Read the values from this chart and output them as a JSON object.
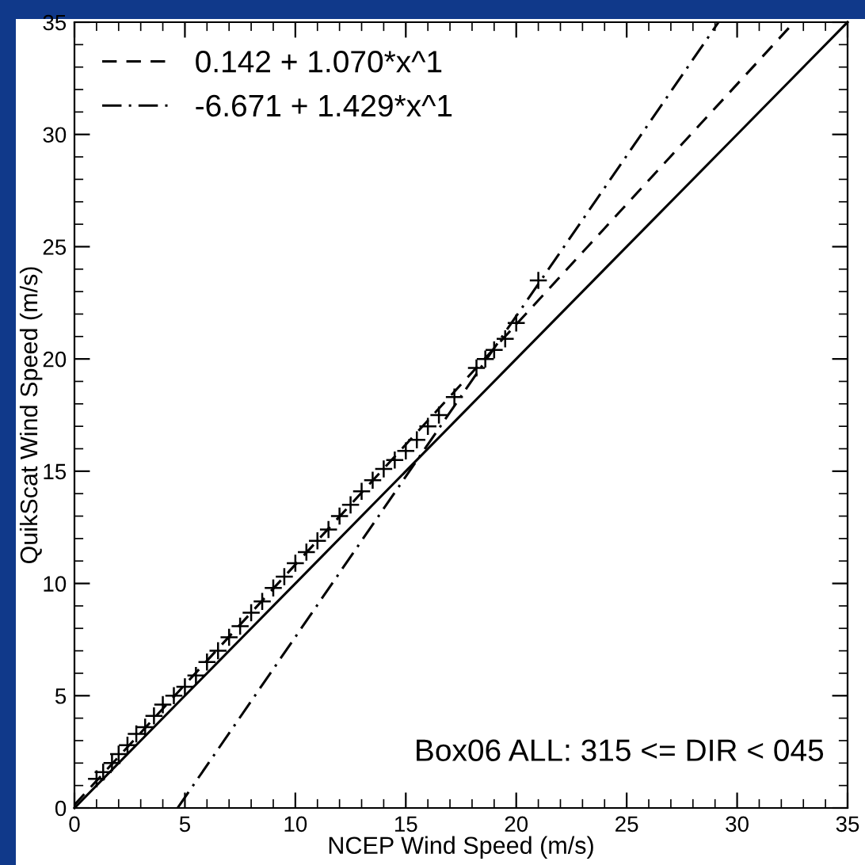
{
  "chart_data": {
    "type": "scatter",
    "xlabel": "NCEP Wind Speed (m/s)",
    "ylabel": "QuikScat Wind Speed (m/s)",
    "xlim": [
      0,
      35
    ],
    "ylim": [
      0,
      35
    ],
    "xticks": [
      0,
      5,
      10,
      15,
      20,
      25,
      30,
      35
    ],
    "yticks": [
      0,
      5,
      10,
      15,
      20,
      25,
      30,
      35
    ],
    "grid": false,
    "legend": "top left",
    "annotations": [
      "Box06 ALL: 315 <= DIR < 045"
    ],
    "series": [
      {
        "color": "#000000",
        "marker": "cross",
        "x": [
          1.0,
          1.3,
          1.7,
          2.0,
          2.4,
          2.8,
          3.2,
          3.6,
          4.0,
          4.5,
          5.0,
          5.5,
          6.0,
          6.5,
          7.0,
          7.5,
          8.0,
          8.5,
          9.0,
          9.5,
          10.0,
          10.5,
          11.0,
          11.5,
          12.0,
          12.5,
          13.0,
          13.5,
          14.0,
          14.5,
          15.0,
          15.5,
          16.0,
          16.5,
          17.2,
          18.2,
          18.6,
          19.0,
          19.5,
          20.0,
          21.0
        ],
        "values": [
          1.3,
          1.6,
          2.0,
          2.4,
          2.8,
          3.3,
          3.6,
          4.1,
          4.6,
          5.0,
          5.4,
          5.9,
          6.5,
          7.0,
          7.6,
          8.1,
          8.7,
          9.2,
          9.8,
          10.3,
          10.9,
          11.4,
          11.9,
          12.4,
          13.0,
          13.5,
          14.1,
          14.6,
          15.1,
          15.5,
          15.9,
          16.4,
          17.0,
          17.5,
          18.3,
          19.6,
          20.0,
          20.4,
          20.9,
          21.6,
          23.5
        ]
      },
      {
        "type": "line",
        "color": "#000000",
        "line_style": "solid",
        "marker": "none",
        "x": [
          0,
          5,
          10,
          15,
          20,
          25,
          30,
          35
        ],
        "values": [
          0,
          5,
          10,
          15,
          20,
          25,
          30,
          35
        ]
      },
      {
        "type": "line",
        "name": "0.142 + 1.070*x^1",
        "color": "#000000",
        "line_style": "dashed",
        "marker": "none",
        "x": [
          0,
          32.58
        ],
        "values": [
          0.14,
          35
        ]
      },
      {
        "type": "line",
        "name": "-6.671 + 1.429*x^1",
        "color": "#000000",
        "line_style": "dashdot",
        "marker": "none",
        "x": [
          4.67,
          29.16
        ],
        "values": [
          0,
          35
        ]
      }
    ]
  }
}
